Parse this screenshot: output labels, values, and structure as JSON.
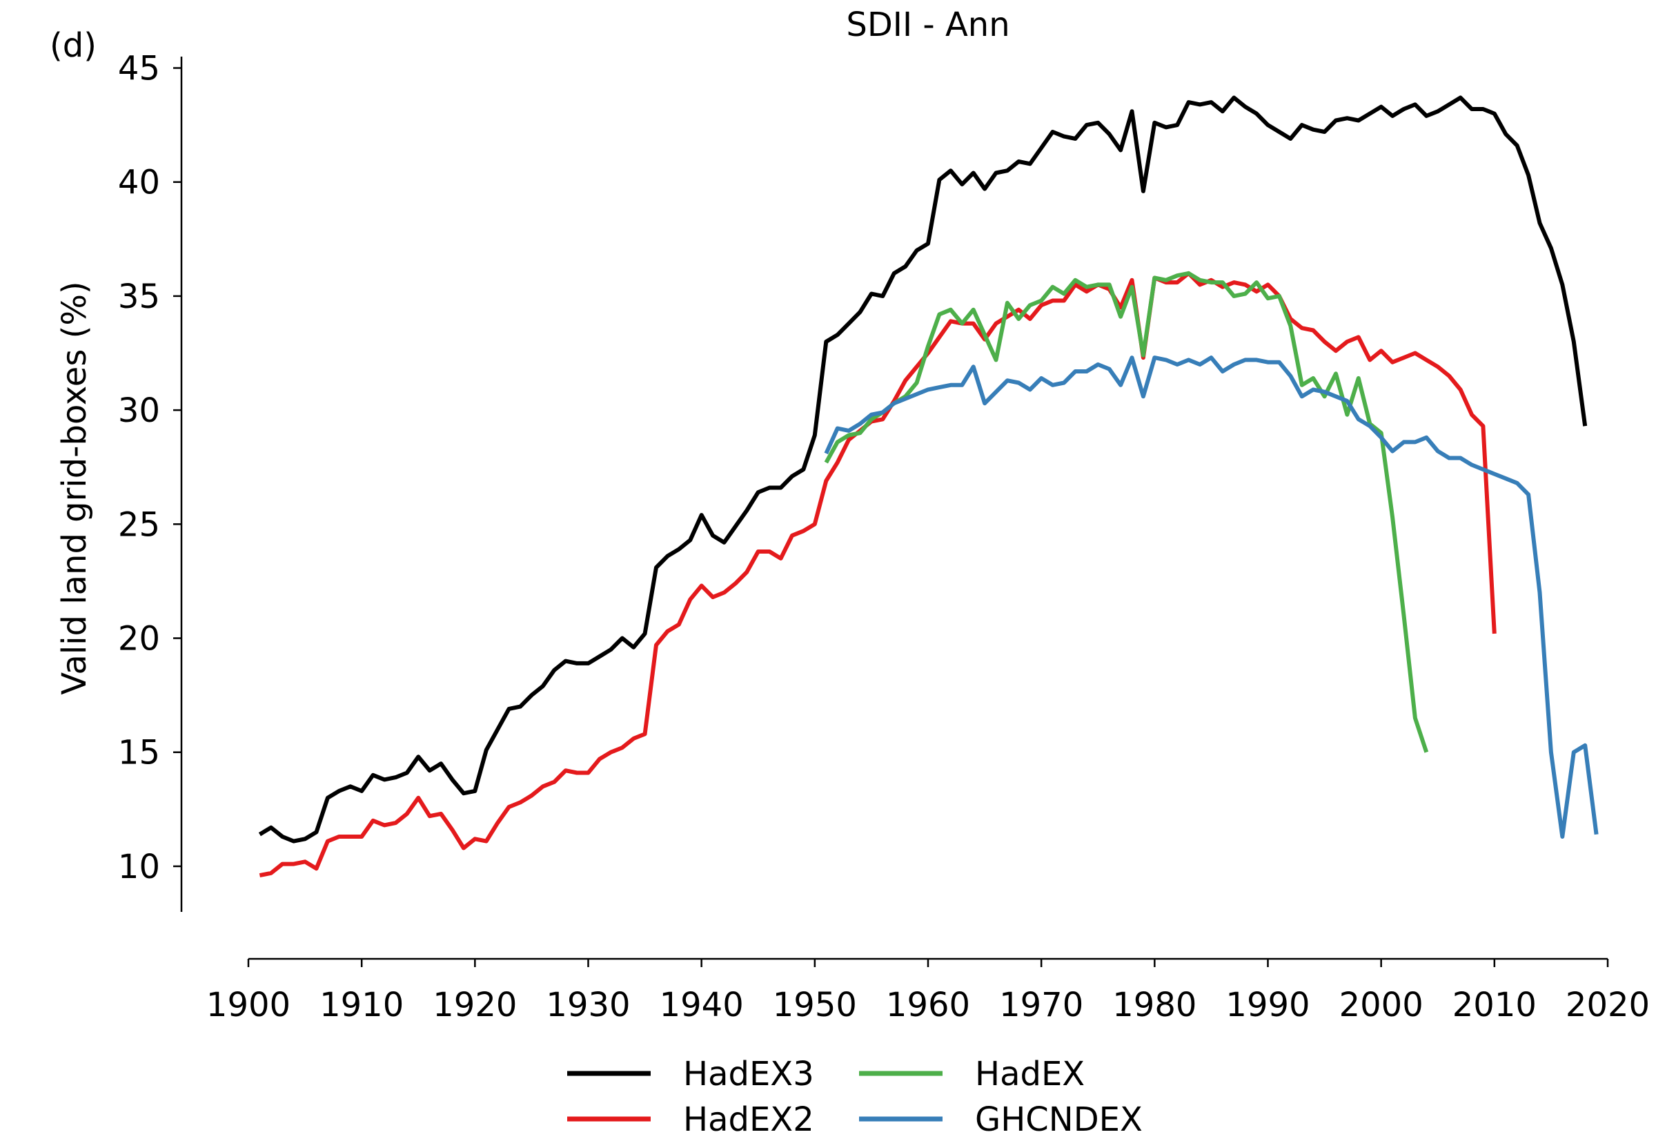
{
  "chart_data": {
    "type": "line",
    "panel_label": "(d)",
    "title": "SDII - Ann",
    "xlabel": "",
    "ylabel": "Valid land grid-boxes (%)",
    "xlim": [
      1900,
      2020
    ],
    "ylim": [
      8,
      45.5
    ],
    "x_ticks": [
      "1900",
      "1910",
      "1920",
      "1930",
      "1940",
      "1950",
      "1960",
      "1970",
      "1980",
      "1990",
      "2000",
      "2010",
      "2020"
    ],
    "y_ticks": [
      "10",
      "15",
      "20",
      "25",
      "30",
      "35",
      "40",
      "45"
    ],
    "grid": false,
    "legend_position": "bottom-center",
    "series": [
      {
        "name": "HadEX3",
        "color": "#000000",
        "x_start": 1901,
        "values": [
          11.4,
          11.7,
          11.3,
          11.1,
          11.2,
          11.5,
          13.0,
          13.3,
          13.5,
          13.3,
          14.0,
          13.8,
          13.9,
          14.1,
          14.8,
          14.2,
          14.5,
          13.8,
          13.2,
          13.3,
          15.1,
          16.0,
          16.9,
          17.0,
          17.5,
          17.9,
          18.6,
          19.0,
          18.9,
          18.9,
          19.2,
          19.5,
          20.0,
          19.6,
          20.2,
          23.1,
          23.6,
          23.9,
          24.3,
          25.4,
          24.5,
          24.2,
          24.9,
          25.6,
          26.4,
          26.6,
          26.6,
          27.1,
          27.4,
          28.9,
          33.0,
          33.3,
          33.8,
          34.3,
          35.1,
          35.0,
          36.0,
          36.3,
          37.0,
          37.3,
          40.1,
          40.5,
          39.9,
          40.4,
          39.7,
          40.4,
          40.5,
          40.9,
          40.8,
          41.5,
          42.2,
          42.0,
          41.9,
          42.5,
          42.6,
          42.1,
          41.4,
          43.1,
          39.6,
          42.6,
          42.4,
          42.5,
          43.5,
          43.4,
          43.5,
          43.1,
          43.7,
          43.3,
          43.0,
          42.5,
          42.2,
          41.9,
          42.5,
          42.3,
          42.2,
          42.7,
          42.8,
          42.7,
          43.0,
          43.3,
          42.9,
          43.2,
          43.4,
          42.9,
          43.1,
          43.4,
          43.7,
          43.2,
          43.2,
          43.0,
          42.1,
          41.6,
          40.3,
          38.2,
          37.1,
          35.5,
          33.0,
          29.3
        ]
      },
      {
        "name": "HadEX2",
        "color": "#e41a1c",
        "x_start": 1901,
        "values": [
          9.6,
          9.7,
          10.1,
          10.1,
          10.2,
          9.9,
          11.1,
          11.3,
          11.3,
          11.3,
          12.0,
          11.8,
          11.9,
          12.3,
          13.0,
          12.2,
          12.3,
          11.6,
          10.8,
          11.2,
          11.1,
          11.9,
          12.6,
          12.8,
          13.1,
          13.5,
          13.7,
          14.2,
          14.1,
          14.1,
          14.7,
          15.0,
          15.2,
          15.6,
          15.8,
          19.7,
          20.3,
          20.6,
          21.7,
          22.3,
          21.8,
          22.0,
          22.4,
          22.9,
          23.8,
          23.8,
          23.5,
          24.5,
          24.7,
          25.0,
          26.9,
          27.7,
          28.7,
          29.1,
          29.5,
          29.6,
          30.4,
          31.3,
          31.9,
          32.5,
          33.2,
          33.9,
          33.8,
          33.8,
          33.1,
          33.8,
          34.1,
          34.4,
          34.0,
          34.6,
          34.8,
          34.8,
          35.5,
          35.2,
          35.5,
          35.3,
          34.5,
          35.7,
          32.3,
          35.8,
          35.6,
          35.6,
          36.0,
          35.5,
          35.7,
          35.4,
          35.6,
          35.5,
          35.2,
          35.5,
          35.0,
          34.0,
          33.6,
          33.5,
          33.0,
          32.6,
          33.0,
          33.2,
          32.2,
          32.6,
          32.1,
          32.3,
          32.5,
          32.2,
          31.9,
          31.5,
          30.9,
          29.8,
          29.3,
          20.2
        ]
      },
      {
        "name": "HadEX",
        "color": "#4daf4a",
        "x_start": 1951,
        "values": [
          27.7,
          28.6,
          28.9,
          29.0,
          29.6,
          29.9,
          30.3,
          30.6,
          31.2,
          32.8,
          34.2,
          34.4,
          33.8,
          34.4,
          33.3,
          32.2,
          34.7,
          34.0,
          34.6,
          34.8,
          35.4,
          35.1,
          35.7,
          35.4,
          35.5,
          35.5,
          34.1,
          35.4,
          32.4,
          35.8,
          35.7,
          35.9,
          36.0,
          35.7,
          35.6,
          35.6,
          35.0,
          35.1,
          35.6,
          34.9,
          35.0,
          33.7,
          31.1,
          31.4,
          30.6,
          31.6,
          29.8,
          31.4,
          29.4,
          29.0,
          25.3,
          21.0,
          16.5,
          15.0
        ]
      },
      {
        "name": "GHCNDEX",
        "color": "#377eb8",
        "x_start": 1951,
        "values": [
          28.1,
          29.2,
          29.1,
          29.4,
          29.8,
          29.9,
          30.3,
          30.5,
          30.7,
          30.9,
          31.0,
          31.1,
          31.1,
          31.9,
          30.3,
          30.8,
          31.3,
          31.2,
          30.9,
          31.4,
          31.1,
          31.2,
          31.7,
          31.7,
          32.0,
          31.8,
          31.1,
          32.3,
          30.6,
          32.3,
          32.2,
          32.0,
          32.2,
          32.0,
          32.3,
          31.7,
          32.0,
          32.2,
          32.2,
          32.1,
          32.1,
          31.5,
          30.6,
          30.9,
          30.8,
          30.6,
          30.4,
          29.6,
          29.3,
          28.8,
          28.2,
          28.6,
          28.6,
          28.8,
          28.2,
          27.9,
          27.9,
          27.6,
          27.4,
          27.2,
          27.0,
          26.8,
          26.3,
          22.0,
          15.0,
          11.3,
          15.0,
          15.3,
          11.4
        ]
      }
    ]
  }
}
